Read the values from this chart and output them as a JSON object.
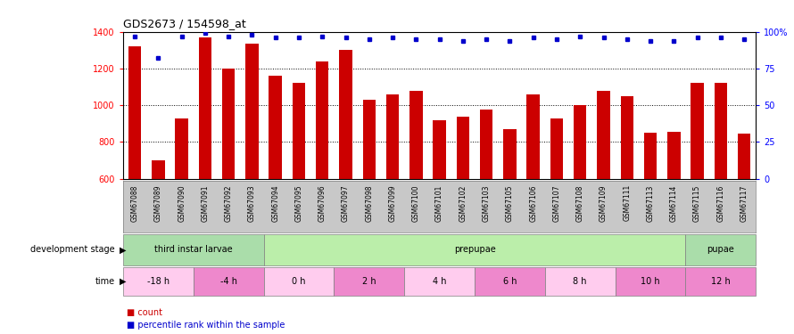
{
  "title": "GDS2673 / 154598_at",
  "samples": [
    "GSM67088",
    "GSM67089",
    "GSM67090",
    "GSM67091",
    "GSM67092",
    "GSM67093",
    "GSM67094",
    "GSM67095",
    "GSM67096",
    "GSM67097",
    "GSM67098",
    "GSM67099",
    "GSM67100",
    "GSM67101",
    "GSM67102",
    "GSM67103",
    "GSM67105",
    "GSM67106",
    "GSM67107",
    "GSM67108",
    "GSM67109",
    "GSM67111",
    "GSM67113",
    "GSM67114",
    "GSM67115",
    "GSM67116",
    "GSM67117"
  ],
  "counts": [
    1320,
    700,
    930,
    1370,
    1200,
    1335,
    1160,
    1120,
    1240,
    1300,
    1030,
    1060,
    1080,
    920,
    940,
    975,
    870,
    1060,
    930,
    1000,
    1080,
    1050,
    850,
    855,
    1120,
    1120,
    845
  ],
  "percentile_ranks": [
    97,
    82,
    97,
    99,
    97,
    98,
    96,
    96,
    97,
    96,
    95,
    96,
    95,
    95,
    94,
    95,
    94,
    96,
    95,
    97,
    96,
    95,
    94,
    94,
    96,
    96,
    95
  ],
  "ylim_left": [
    600,
    1400
  ],
  "ylim_right": [
    0,
    100
  ],
  "yticks_left": [
    600,
    800,
    1000,
    1200,
    1400
  ],
  "yticks_right": [
    0,
    25,
    50,
    75,
    100
  ],
  "bar_color": "#cc0000",
  "dot_color": "#0000cc",
  "bg_color": "#ffffff",
  "tick_area_color": "#c8c8c8",
  "dev_stage_row": {
    "label": "development stage",
    "segments": [
      {
        "text": "third instar larvae",
        "start": 0,
        "end": 6,
        "color": "#aaddaa"
      },
      {
        "text": "prepupae",
        "start": 6,
        "end": 24,
        "color": "#bbeeaa"
      },
      {
        "text": "pupae",
        "start": 24,
        "end": 27,
        "color": "#aaddaa"
      }
    ]
  },
  "time_row": {
    "label": "time",
    "segments": [
      {
        "text": "-18 h",
        "start": 0,
        "end": 3,
        "color": "#ffccee"
      },
      {
        "text": "-4 h",
        "start": 3,
        "end": 6,
        "color": "#ee88cc"
      },
      {
        "text": "0 h",
        "start": 6,
        "end": 9,
        "color": "#ffccee"
      },
      {
        "text": "2 h",
        "start": 9,
        "end": 12,
        "color": "#ee88cc"
      },
      {
        "text": "4 h",
        "start": 12,
        "end": 15,
        "color": "#ffccee"
      },
      {
        "text": "6 h",
        "start": 15,
        "end": 18,
        "color": "#ee88cc"
      },
      {
        "text": "8 h",
        "start": 18,
        "end": 21,
        "color": "#ffccee"
      },
      {
        "text": "10 h",
        "start": 21,
        "end": 24,
        "color": "#ee88cc"
      },
      {
        "text": "12 h",
        "start": 24,
        "end": 27,
        "color": "#ee88cc"
      }
    ]
  },
  "legend_items": [
    {
      "color": "#cc0000",
      "text": "count"
    },
    {
      "color": "#0000cc",
      "text": "percentile rank within the sample"
    }
  ]
}
